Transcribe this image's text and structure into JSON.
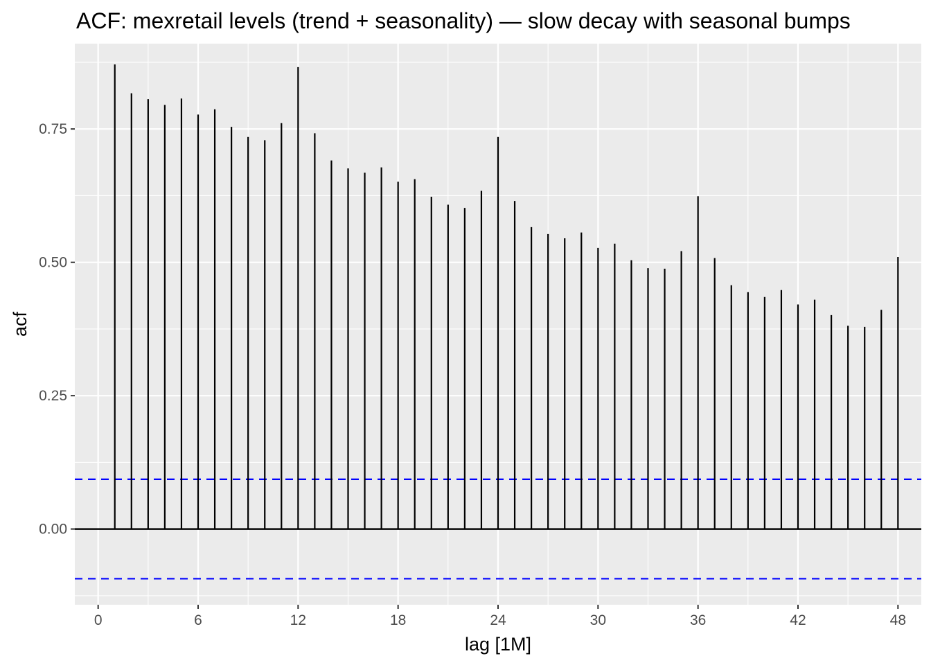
{
  "chart_data": {
    "type": "bar",
    "title": "ACF: mexretail levels (trend + seasonality) — slow decay with seasonal bumps",
    "xlabel": "lag [1M]",
    "ylabel": "acf",
    "xlim": [
      -1.4,
      49.4
    ],
    "ylim": [
      -0.142,
      0.91
    ],
    "x_ticks": [
      0,
      6,
      12,
      18,
      24,
      30,
      36,
      42,
      48
    ],
    "x_tick_labels": [
      "0",
      "6",
      "12",
      "18",
      "24",
      "30",
      "36",
      "42",
      "48"
    ],
    "y_ticks": [
      0,
      0.25,
      0.5,
      0.75
    ],
    "y_tick_labels": [
      "0.00",
      "0.25",
      "0.50",
      "0.75"
    ],
    "grid": true,
    "legend": "none",
    "lags": [
      1,
      2,
      3,
      4,
      5,
      6,
      7,
      8,
      9,
      10,
      11,
      12,
      13,
      14,
      15,
      16,
      17,
      18,
      19,
      20,
      21,
      22,
      23,
      24,
      25,
      26,
      27,
      28,
      29,
      30,
      31,
      32,
      33,
      34,
      35,
      36,
      37,
      38,
      39,
      40,
      41,
      42,
      43,
      44,
      45,
      46,
      47,
      48
    ],
    "values": [
      0.871,
      0.817,
      0.806,
      0.795,
      0.807,
      0.777,
      0.787,
      0.754,
      0.735,
      0.729,
      0.761,
      0.866,
      0.742,
      0.691,
      0.676,
      0.668,
      0.678,
      0.651,
      0.656,
      0.623,
      0.608,
      0.602,
      0.634,
      0.735,
      0.615,
      0.566,
      0.553,
      0.545,
      0.556,
      0.527,
      0.535,
      0.504,
      0.489,
      0.488,
      0.521,
      0.624,
      0.508,
      0.457,
      0.444,
      0.435,
      0.448,
      0.421,
      0.43,
      0.401,
      0.381,
      0.379,
      0.411,
      0.51
    ],
    "confidence_bound": 0.0932,
    "colors": {
      "panel_background": "#ebebeb",
      "grid": "#ffffff",
      "bar": "#000000",
      "confidence_line": "#0000ff",
      "zero_line": "#000000"
    }
  }
}
